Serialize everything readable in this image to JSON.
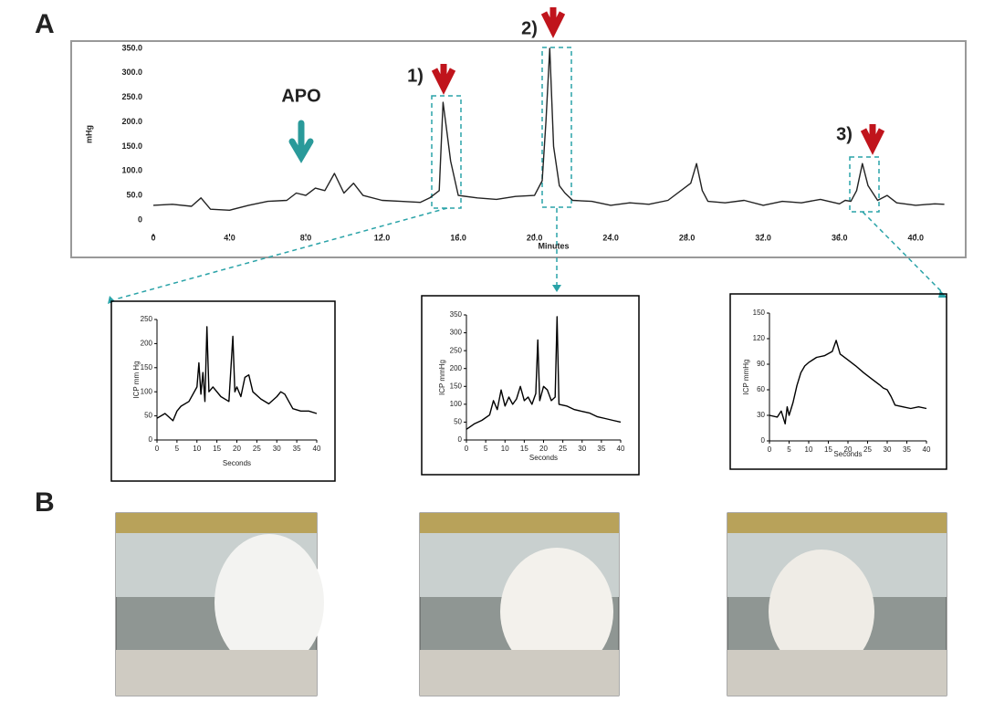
{
  "labels": {
    "panel_a": "A",
    "panel_b": "B"
  },
  "chart_data": [
    {
      "type": "line",
      "annotations": [
        "APO",
        "1)",
        "2)",
        "3)"
      ],
      "xlabel": "Minutes",
      "ylabel": "mHg",
      "color": "#222",
      "x": [
        0,
        1,
        2,
        2.5,
        3,
        4,
        5,
        6,
        7,
        7.5,
        8,
        8.5,
        9,
        9.5,
        10,
        10.5,
        11,
        12,
        13,
        14,
        14.5,
        15,
        15.2,
        15.4,
        15.6,
        16,
        17,
        18,
        19,
        20,
        20.4,
        20.6,
        20.8,
        21,
        21.3,
        21.6,
        22,
        23,
        24,
        25,
        26,
        27,
        28.2,
        28.5,
        28.8,
        29.1,
        30,
        31,
        32,
        33,
        34,
        35,
        36,
        36.3,
        36.6,
        36.9,
        37.2,
        37.5,
        38,
        38.5,
        39,
        40,
        41,
        41.5
      ],
      "values": [
        30,
        32,
        28,
        45,
        22,
        20,
        30,
        38,
        40,
        55,
        50,
        65,
        60,
        95,
        55,
        75,
        50,
        40,
        38,
        36,
        45,
        60,
        240,
        180,
        120,
        50,
        45,
        42,
        48,
        50,
        80,
        200,
        350,
        150,
        70,
        55,
        40,
        38,
        30,
        35,
        32,
        40,
        75,
        115,
        60,
        38,
        35,
        40,
        30,
        38,
        35,
        42,
        33,
        40,
        38,
        60,
        115,
        70,
        40,
        50,
        35,
        30,
        33,
        32
      ],
      "xlim": [
        0,
        42
      ],
      "xticks": [
        0,
        {
          "value": 4,
          "label": "4.0"
        },
        {
          "value": 8,
          "label": "8.0"
        },
        {
          "value": 12,
          "label": "12.0"
        },
        {
          "value": 16,
          "label": "16.0"
        },
        {
          "value": 20,
          "label": "20.0"
        },
        {
          "value": 24,
          "label": "24.0"
        },
        {
          "value": 28,
          "label": "28.0"
        },
        {
          "value": 32,
          "label": "32.0"
        },
        {
          "value": 36,
          "label": "36.0"
        },
        {
          "value": 40,
          "label": "40.0"
        }
      ],
      "ylim": [
        0,
        350
      ],
      "yticks": [
        0,
        {
          "value": 50,
          "label": "50.0"
        },
        {
          "value": 100,
          "label": "100.0"
        },
        {
          "value": 150,
          "label": "150.0"
        },
        {
          "value": 200,
          "label": "200.0"
        },
        {
          "value": 250,
          "label": "250.0"
        },
        {
          "value": 300,
          "label": "300.0"
        },
        {
          "value": 350,
          "label": "350.0"
        }
      ]
    },
    {
      "type": "line",
      "xlabel": "Seconds",
      "ylabel": "ICP mm Hg",
      "color": "#000",
      "x": [
        0,
        2,
        4,
        5,
        6,
        8,
        10,
        10.5,
        11,
        11.5,
        12,
        12.5,
        13,
        14,
        16,
        18,
        19,
        19.5,
        20,
        21,
        22,
        23,
        24,
        26,
        28,
        30,
        31,
        32,
        34,
        36,
        38,
        40
      ],
      "values": [
        45,
        55,
        40,
        60,
        70,
        80,
        110,
        160,
        95,
        140,
        80,
        235,
        100,
        110,
        90,
        80,
        215,
        100,
        110,
        90,
        130,
        135,
        100,
        85,
        75,
        90,
        100,
        95,
        65,
        60,
        60,
        55
      ],
      "xlim": [
        0,
        40
      ],
      "xticks": [
        0,
        5,
        10,
        15,
        20,
        25,
        30,
        35,
        40
      ],
      "ylim": [
        0,
        250
      ],
      "yticks": [
        0,
        50,
        100,
        150,
        200,
        250
      ]
    },
    {
      "type": "line",
      "xlabel": "Seconds",
      "ylabel": "ICP mmHg",
      "color": "#000",
      "x": [
        0,
        2,
        4,
        6,
        7,
        8,
        9,
        10,
        11,
        12,
        13,
        14,
        15,
        16,
        17,
        18,
        18.5,
        19,
        20,
        21,
        22,
        23,
        23.5,
        24,
        26,
        28,
        30,
        32,
        34,
        36,
        38,
        40
      ],
      "values": [
        30,
        45,
        55,
        70,
        110,
        85,
        140,
        95,
        120,
        100,
        115,
        150,
        110,
        120,
        100,
        130,
        280,
        110,
        150,
        140,
        110,
        120,
        345,
        100,
        95,
        85,
        80,
        75,
        65,
        60,
        55,
        50
      ],
      "xlim": [
        0,
        40
      ],
      "xticks": [
        0,
        5,
        10,
        15,
        20,
        25,
        30,
        35,
        40
      ],
      "ylim": [
        0,
        350
      ],
      "yticks": [
        0,
        50,
        100,
        150,
        200,
        250,
        300,
        350
      ]
    },
    {
      "type": "line",
      "xlabel": "Seconds",
      "ylabel": "ICP mmHg",
      "color": "#000",
      "x": [
        0,
        2,
        3,
        4,
        4.5,
        5,
        6,
        7,
        8,
        9,
        10,
        12,
        14,
        16,
        17,
        18,
        20,
        22,
        24,
        26,
        28,
        29,
        30,
        31,
        32,
        34,
        36,
        38,
        40
      ],
      "values": [
        30,
        28,
        35,
        20,
        40,
        30,
        45,
        65,
        80,
        88,
        92,
        98,
        100,
        105,
        118,
        102,
        95,
        88,
        80,
        73,
        66,
        62,
        60,
        52,
        42,
        40,
        38,
        40,
        38
      ],
      "xlim": [
        0,
        40
      ],
      "xticks": [
        0,
        5,
        10,
        15,
        20,
        25,
        30,
        35,
        40
      ],
      "ylim": [
        0,
        150
      ],
      "yticks": [
        0,
        30,
        60,
        90,
        120,
        150
      ]
    }
  ]
}
